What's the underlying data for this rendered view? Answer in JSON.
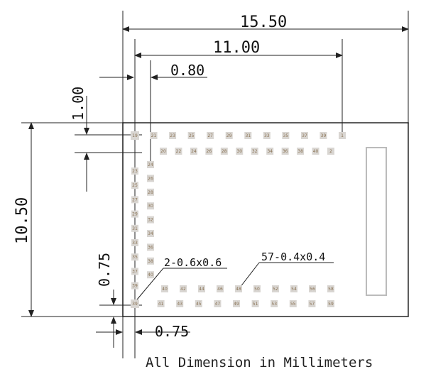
{
  "dimensions": {
    "width_total": "15.50",
    "pad_span": "11.00",
    "pad_pitch": "0.80",
    "top_offset": "1.00",
    "height_total": "10.50",
    "left_offset": "0.75",
    "bottom_offset": "0.75",
    "callout_large_pads": "2-0.6x0.6",
    "callout_small_pads": "57-0.4x0.4"
  },
  "caption": "All Dimension in Millimeters",
  "pads": {
    "top_row_1": [
      "19",
      "21",
      "23",
      "25",
      "27",
      "29",
      "31",
      "33",
      "35",
      "37",
      "39",
      "1"
    ],
    "top_row_2": [
      "20",
      "22",
      "24",
      "26",
      "28",
      "30",
      "32",
      "34",
      "36",
      "38",
      "40",
      "2"
    ],
    "left_col_1": [
      "23",
      "25",
      "27",
      "29",
      "31",
      "33",
      "35",
      "37",
      "39"
    ],
    "left_col_2": [
      "24",
      "26",
      "28",
      "30",
      "32",
      "34",
      "36",
      "38",
      "40"
    ],
    "bottom_row_1": [
      "40",
      "42",
      "44",
      "46",
      "48",
      "50",
      "52",
      "54",
      "56",
      "58"
    ],
    "bottom_row_2": [
      "39",
      "41",
      "43",
      "45",
      "47",
      "49",
      "51",
      "53",
      "55",
      "57",
      "59"
    ]
  },
  "colors": {
    "pad_fill": "#d9d6d2",
    "pad_text": "#8a7355",
    "line": "#222222"
  }
}
